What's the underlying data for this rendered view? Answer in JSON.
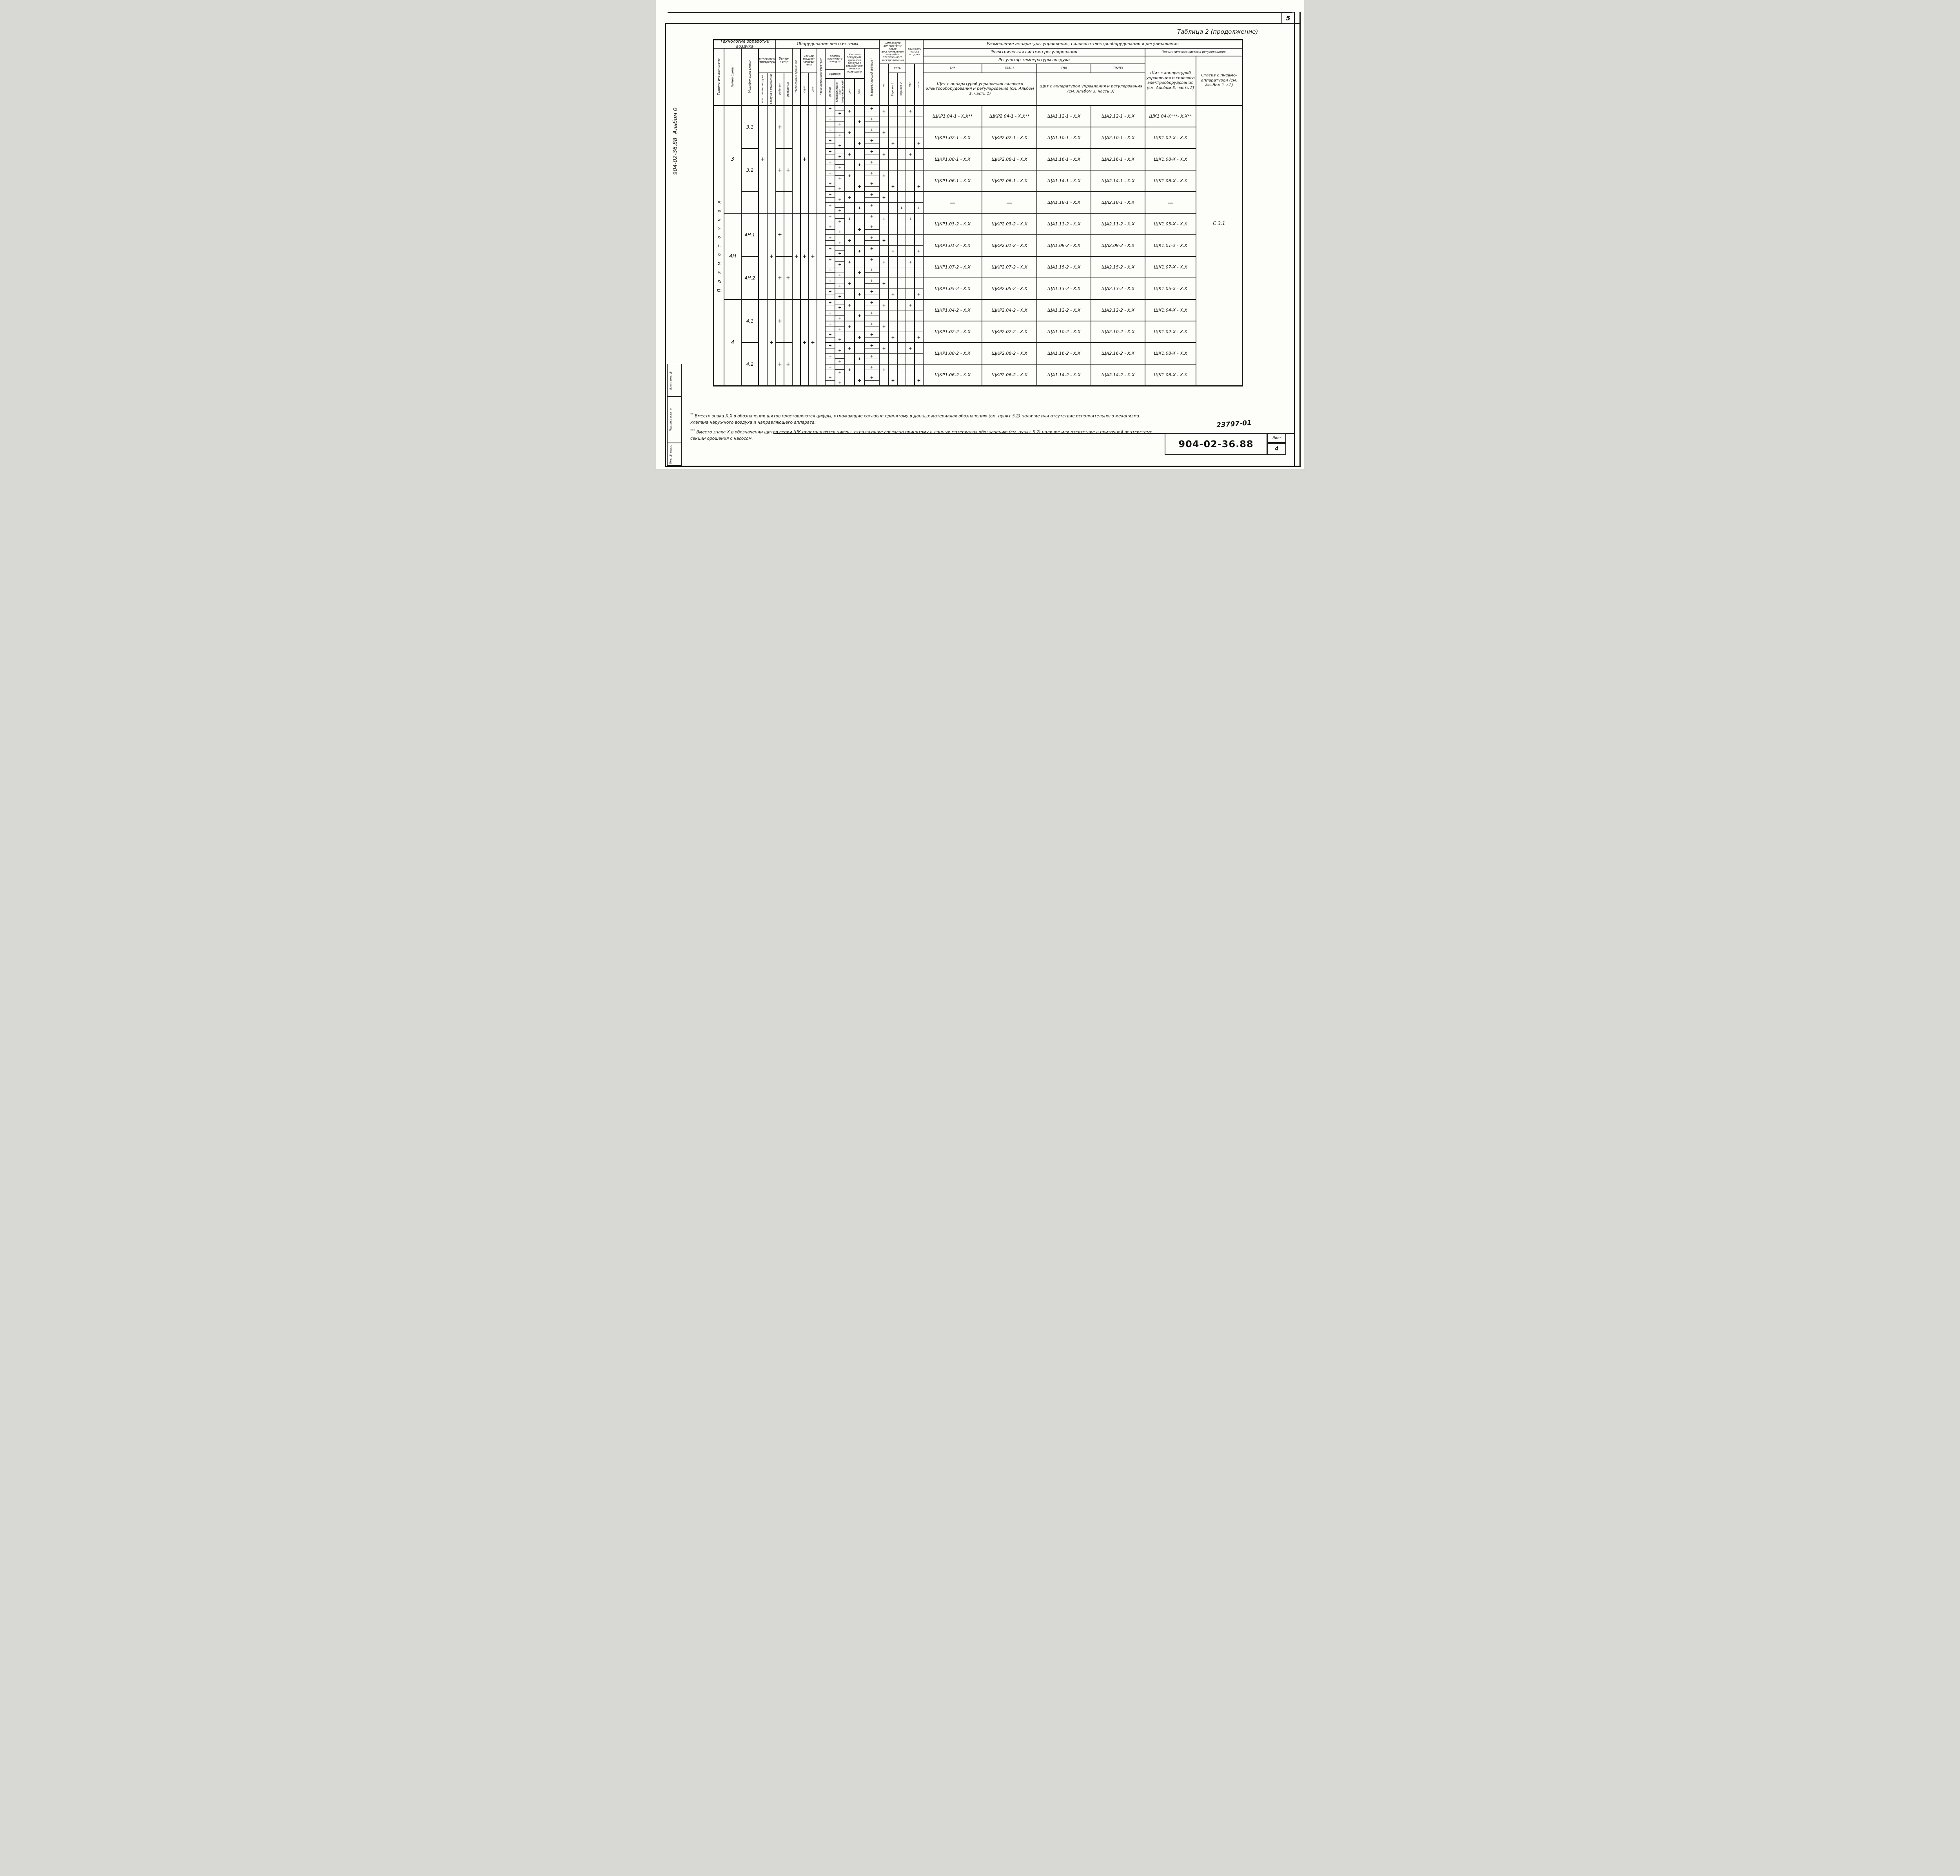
{
  "page": {
    "number": "5",
    "caption": "Таблица 2 (продолжение)",
    "doc_number": "904-02-36.88",
    "sheet_label": "Лист",
    "sheet_number": "4",
    "handwritten_mark": "23797-01",
    "margin_doc_number": "904-02-36.88",
    "margin_album": "Альбом 0",
    "stamp_vzam": "Взам. инв. №",
    "stamp_podpis": "Подпись и дата",
    "stamp_inv": "Инв. № подл."
  },
  "header": {
    "tech": "Технология обработки воздуха",
    "equipment": "Оборудование вентсистемы",
    "selfstart": "Самозапуск вентсистемы после восстановления аварийно отключенного электропитания",
    "selfstart_no": "нет",
    "selfstart_yes": "есть",
    "variant1": "Вариант 1",
    "variant2": "Вариант 2",
    "flow_control": "Контроль потока воздуха",
    "flow_no": "нет",
    "flow_yes": "есть",
    "placement": "Размещение аппаратуры управления, силового электрооборудования и регулирования",
    "electric_system": "Электрическая система регулирования",
    "pneumatic_system": "Пневматическая система регулирования",
    "temp_regulator": "Регулятор температуры воздуха",
    "reg1": "ТН8",
    "reg2": "ТЭ6ЛЗ",
    "reg3": "ТН8",
    "reg4": "ТЭ2ПЗ",
    "panel1": "Щит с аппаратурой управления силового электрооборудования и регулирования (см. Альбом 3, часть 1)",
    "panel2": "Щит с аппаратурой управления и регулирования (см. Альбом 3, часть 3)",
    "panel3": "Щит с аппаратурой управления и силового электрооборудования (см. Альбом 3, часть 2)",
    "stativ": "Статив с пневмо­аппаратурой (см. Альбом 1 ч.2)",
    "scheme": "Технологическая схема",
    "scheme_num": "Номер схемы",
    "scheme_mod": "Модификация схемы",
    "temp_reg": "Регулирование температуры",
    "supply_air": "приточного воздуха",
    "room_air": "воздуха в помещении",
    "fan": "Венти­лятор",
    "fan_work": "рабочий",
    "fan_reserve": "резервный",
    "irrigation_pump": "Насос секции орошения",
    "heater_sections": "Секции воздухо­нагрева­теля",
    "one": "одна",
    "two": "две",
    "heater_pump": "Насос воздухонагревателя",
    "outdoor_valve": "Клапан наружного воздуха",
    "drive": "привод",
    "manual": "ручной",
    "electric_drive": "электрический или пневматический",
    "recirc_valves": "Клапаны рециркуля­ционного воздуха с электро- или пневмо­приводами",
    "valve_one": "один",
    "valve_two": "два",
    "guide_vane": "Направляющий аппарат"
  },
  "flow_scheme_label": "П р я м о т о ч н а я",
  "groups": [
    {
      "label": "3",
      "rows": 5
    },
    {
      "label": "4Н",
      "rows": 4
    },
    {
      "label": "4",
      "rows": 4
    }
  ],
  "mods": [
    {
      "label": "3.1",
      "span": 2
    },
    {
      "label": "3.2",
      "span": 2
    },
    {
      "label": "",
      "span": 1
    },
    {
      "label": "4Н.1",
      "span": 2
    },
    {
      "label": "4Н.2",
      "span": 2
    },
    {
      "label": "4.1",
      "span": 2
    },
    {
      "label": "4.2",
      "span": 2
    }
  ],
  "marks": {
    "c1_groups": [
      "+",
      "",
      ""
    ],
    "c2_groups": [
      "",
      "+",
      "+"
    ],
    "c5_groups": [
      "",
      "+",
      ""
    ],
    "c6_groups": [
      "+",
      "+",
      "+"
    ],
    "c7_groups": [
      "",
      "+",
      "+"
    ],
    "c8_groups": [
      "",
      "",
      ""
    ],
    "c3_mods": [
      "+",
      "+",
      "",
      "+",
      "+",
      "+",
      "+"
    ],
    "c4_mods": [
      "",
      "+",
      "",
      "",
      "+",
      "",
      "+"
    ],
    "ladder_manual": [
      1,
      0,
      1,
      0
    ],
    "ladder_electric": [
      0,
      1,
      0,
      1
    ],
    "ladder_guide": [
      1,
      0,
      1,
      0
    ],
    "half_one": [
      1,
      0
    ],
    "half_two": [
      0,
      1
    ],
    "half_selfstart_no": [
      1,
      0
    ],
    "variant1_rows": [
      1,
      3,
      6,
      8,
      10,
      12
    ],
    "variant2_rows": [
      4
    ],
    "flow_no_rows": [
      0,
      2,
      5,
      7,
      9,
      11
    ],
    "flow_yes_rows": [
      1,
      3,
      4,
      6,
      8,
      10,
      12
    ]
  },
  "rows": [
    {
      "panels": [
        "ЩКР1.04-1 - Х.Х**",
        "ЩКР2.04-1 - Х.Х**",
        "ЩА1.12-1 - Х.Х",
        "ЩА2.12-1 - Х.Х",
        "ЩК1.04-Х***- Х.Х**"
      ],
      "stativ": ""
    },
    {
      "panels": [
        "ЩКР1.02-1 - Х.Х",
        "ЩКР2.02-1 - Х.Х",
        "ЩА1.10-1 - Х.Х",
        "ЩА2.10-1 - Х.Х",
        "ЩК1.02-Х - Х.Х"
      ],
      "stativ": ""
    },
    {
      "panels": [
        "ЩКР1.08-1 - Х.Х",
        "ЩКР2.08-1 - Х.Х",
        "ЩА1.16-1 - Х.Х",
        "ЩА2.16-1 - Х.Х",
        "ЩК1.08-Х - Х.Х"
      ],
      "stativ": ""
    },
    {
      "panels": [
        "ЩКР1.06-1 - Х.Х",
        "ЩКР2.06-1 - Х.Х",
        "ЩА1.14-1 - Х.Х",
        "ЩА2.14-1 - Х.Х",
        "ЩК1.06-Х - Х.Х"
      ],
      "stativ": ""
    },
    {
      "panels": [
        "—",
        "—",
        "ЩА1.18-1 - Х.Х",
        "ЩА2.18-1 - Х.Х",
        "—"
      ],
      "stativ": ""
    },
    {
      "panels": [
        "ЩКР1.03-2 - Х.Х",
        "ЩКР2.03-2 - Х.Х",
        "ЩА1.11-2 - Х.Х",
        "ЩА2.11-2 - Х.Х",
        "ЩК1.03-Х - Х.Х"
      ],
      "stativ": "С 3.1"
    },
    {
      "panels": [
        "ЩКР1.01-2 - Х.Х",
        "ЩКР2.01-2 - Х.Х",
        "ЩА1.09-2 - Х.Х",
        "ЩА2.09-2 - Х.Х",
        "ЩК1.01-Х - Х.Х"
      ],
      "stativ": ""
    },
    {
      "panels": [
        "ЩКР1.07-2 - Х.Х",
        "ЩКР2.07-2 - Х.Х",
        "ЩА1.15-2 - Х.Х",
        "ЩА2.15-2 - Х.Х",
        "ЩК1.07-Х - Х.Х"
      ],
      "stativ": ""
    },
    {
      "panels": [
        "ЩКР1.05-2 - Х.Х",
        "ЩКР2.05-2 - Х.Х",
        "ЩА1.13-2 - Х.Х",
        "ЩА2.13-2 - Х.Х",
        "ЩК1.05-Х - Х.Х"
      ],
      "stativ": ""
    },
    {
      "panels": [
        "ЩКР1.04-2 - Х.Х",
        "ЩКР2.04-2 - Х.Х",
        "ЩА1.12-2 - Х.Х",
        "ЩА2.12-2 - Х.Х",
        "ЩК1.04-Х - Х.Х"
      ],
      "stativ": ""
    },
    {
      "panels": [
        "ЩКР1.02-2 - Х.Х",
        "ЩКР2.02-2 - Х.Х",
        "ЩА1.10-2 - Х.Х",
        "ЩА2.10-2 - Х.Х",
        "ЩК1.02-Х - Х.Х"
      ],
      "stativ": ""
    },
    {
      "panels": [
        "ЩКР1.08-2 - Х.Х",
        "ЩКР2.08-2 - Х.Х",
        "ЩА1.16-2 - Х.Х",
        "ЩА2.16-2 - Х.Х",
        "ЩК1.08-Х - Х.Х"
      ],
      "stativ": ""
    },
    {
      "panels": [
        "ЩКР1.06-2 - Х.Х",
        "ЩКР2.06-2 - Х.Х",
        "ЩА1.14-2 - Х.Х",
        "ЩА2.14-2 - Х.Х",
        "ЩК1.06-Х - Х.Х"
      ],
      "stativ": ""
    }
  ],
  "footnotes": [
    {
      "marker": "**",
      "text": "Вместо знака Х.Х в обозначении щитов проставляются цифры, отражающие согласно принятому в данных материалах обозначению (см. пункт 5.2) наличие или отсутствие исполнительного механизма клапана наружного воздуха и направляющего аппарата."
    },
    {
      "marker": "***",
      "text": "Вместо знака Х в обозначении щитов серии ЩК проставляются цифры, отражающие согласно принятому в данных материалах обозначению (см. пункт 5.2) наличие или отсутствие в приточной вентсистеме секции орошения с насосом."
    }
  ]
}
